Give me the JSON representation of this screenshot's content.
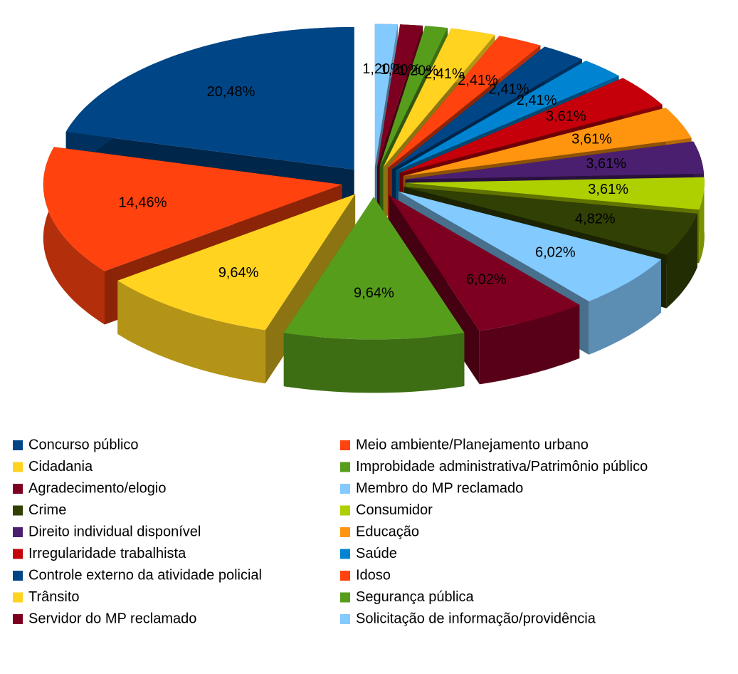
{
  "chart_data": {
    "type": "pie3d",
    "categories": [
      "Concurso público",
      "Meio ambiente/Planejamento urbano",
      "Cidadania",
      "Improbidade administrativa/Patrimônio público",
      "Agradecimento/elogio",
      "Membro do MP reclamado",
      "Crime",
      "Consumidor",
      "Direito individual disponível",
      "Educação",
      "Irregularidade trabalhista",
      "Saúde",
      "Controle externo da atividade policial",
      "Idoso",
      "Trânsito",
      "Segurança pública",
      "Servidor do MP reclamado",
      "Solicitação de informação/providência"
    ],
    "values": [
      20.48,
      14.46,
      9.64,
      9.64,
      6.02,
      6.02,
      4.82,
      3.61,
      3.61,
      3.61,
      3.61,
      2.41,
      2.41,
      2.41,
      2.41,
      1.2,
      1.2,
      1.2
    ],
    "value_labels": [
      "20,48%",
      "14,46%",
      "9,64%",
      "9,64%",
      "6,02%",
      "6,02%",
      "4,82%",
      "3,61%",
      "3,61%",
      "3,61%",
      "3,61%",
      "2,41%",
      "2,41%",
      "2,41%",
      "2,41%",
      "1,20%",
      "1,20%",
      "1,20%"
    ],
    "colors": [
      "#004586",
      "#ff420e",
      "#ffd320",
      "#579d1c",
      "#7e0021",
      "#83caff",
      "#314004",
      "#aecf00",
      "#4b1f6f",
      "#ff950e",
      "#c5000b",
      "#0084d1",
      "#004586",
      "#ff420e",
      "#ffd320",
      "#579d1c",
      "#7e0021",
      "#83caff"
    ],
    "legend": "bottom"
  }
}
